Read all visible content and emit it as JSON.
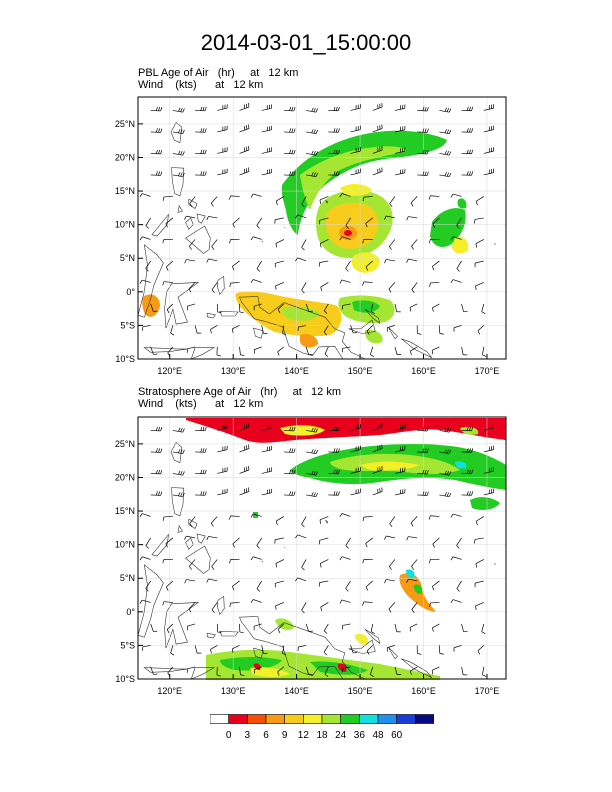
{
  "title": "2014-03-01_15:00:00",
  "panels": [
    {
      "line1": "PBL Age of Air   (hr)     at   12 km",
      "line2": "Wind    (kts)      at   12 km"
    },
    {
      "line1": "Stratosphere Age of Air   (hr)     at   12 km",
      "line2": "Wind    (kts)      at   12 km"
    }
  ],
  "axes": {
    "lat_labels": [
      "25°N",
      "20°N",
      "15°N",
      "10°N",
      "5°N",
      "0°",
      "5°S",
      "10°S"
    ],
    "lat_values": [
      25,
      20,
      15,
      10,
      5,
      0,
      -5,
      -10
    ],
    "lon_labels": [
      "120°E",
      "130°E",
      "140°E",
      "150°E",
      "160°E",
      "170°E"
    ],
    "lon_values": [
      120,
      130,
      140,
      150,
      160,
      170
    ],
    "lon_range": [
      115,
      173
    ],
    "lat_range": [
      -10,
      29
    ]
  },
  "colorbar": {
    "labels": [
      "0",
      "3",
      "6",
      "9",
      "12",
      "18",
      "24",
      "36",
      "48",
      "60"
    ],
    "colors": [
      "#ffffff",
      "#e8001c",
      "#f4500a",
      "#f79a14",
      "#f8cc1a",
      "#f4f028",
      "#a4e632",
      "#22cc22",
      "#10e0e0",
      "#2090ee",
      "#1a3cd8",
      "#0a0a80"
    ]
  },
  "colors": {
    "pbl_green": "#22cc22",
    "pbl_lime": "#a4e632",
    "pbl_yellow": "#f4f028",
    "pbl_gold": "#f8cc1a",
    "pbl_orange": "#f79a14",
    "strat_red": "#e8001c"
  }
}
